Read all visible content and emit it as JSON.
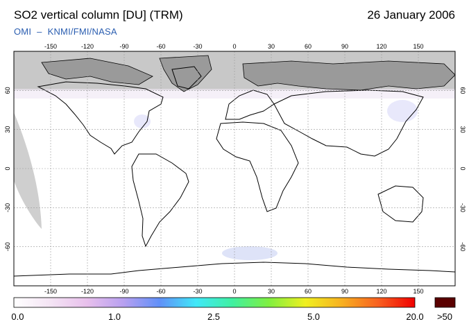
{
  "title": "SO2 vertical column [DU] (TRM)",
  "date": "26 January 2006",
  "credit": {
    "instrument": "OMI",
    "separator": "–",
    "agencies": "KNMI/FMI/NASA"
  },
  "map": {
    "lon_ticks": [
      "-150",
      "-120",
      "-90",
      "-60",
      "-30",
      "0",
      "30",
      "60",
      "90",
      "120",
      "150"
    ],
    "lat_ticks": [
      "60",
      "30",
      "0",
      "-30",
      "-60"
    ],
    "colors": {
      "land_outline": "#000000",
      "no_data": "#c8c8c8",
      "arctic_land": "#9a9a9a",
      "background": "#ffffff"
    }
  },
  "colorbar": {
    "labels": [
      "0.0",
      "1.0",
      "2.5",
      "5.0",
      "20.0"
    ],
    "overflow_label": ">50",
    "overflow_color": "#5a0000",
    "stops": [
      "#ffffff",
      "#f4e4f4",
      "#e8c0ec",
      "#b8a0f0",
      "#6090f8",
      "#40e8f8",
      "#40f0a0",
      "#80f040",
      "#f0f020",
      "#f8b020",
      "#f86020",
      "#f00000"
    ]
  }
}
